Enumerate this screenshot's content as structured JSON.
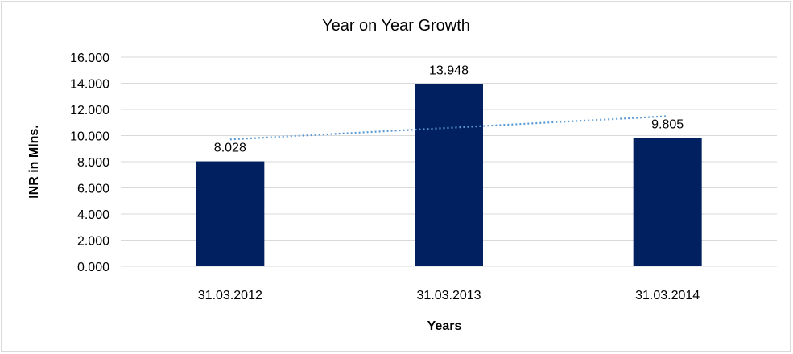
{
  "chart_data": {
    "type": "bar",
    "title": "Year on Year Growth",
    "xlabel": "Years",
    "ylabel": "INR in Mlns.",
    "categories": [
      "31.03.2012",
      "31.03.2013",
      "31.03.2014"
    ],
    "values": [
      8.028,
      13.948,
      9.805
    ],
    "data_labels": [
      "8.028",
      "13.948",
      "9.805"
    ],
    "ylim": [
      0,
      16
    ],
    "yticks": [
      0,
      2,
      4,
      6,
      8,
      10,
      12,
      14,
      16
    ],
    "ytick_labels": [
      "0.000",
      "2.000",
      "4.000",
      "6.000",
      "8.000",
      "10.000",
      "12.000",
      "14.000",
      "16.000"
    ],
    "grid": true,
    "trendline": {
      "type": "linear",
      "style": "dotted"
    },
    "colors": {
      "bar": "#002060",
      "trendline": "#5b9bd5",
      "grid": "#d9d9d9"
    }
  }
}
